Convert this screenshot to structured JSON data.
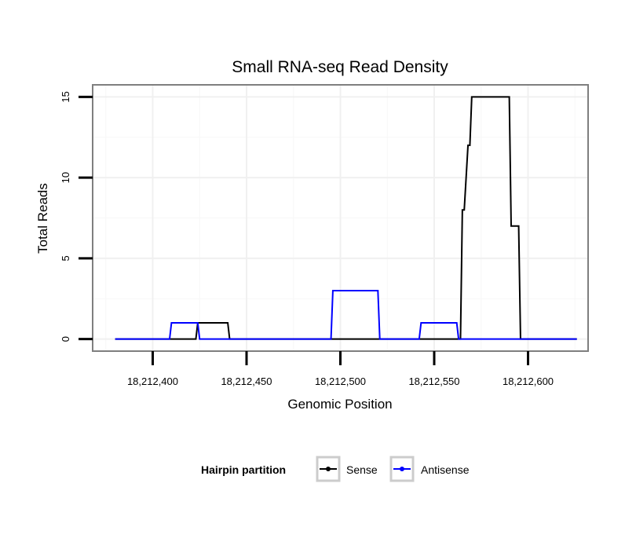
{
  "chart_data": {
    "type": "line",
    "title": "Small RNA-seq Read Density",
    "xlabel": "Genomic Position",
    "ylabel": "Total Reads",
    "xlim": [
      18212368,
      18212632
    ],
    "ylim": [
      -0.75,
      15.75
    ],
    "x_ticks": [
      18212400,
      18212450,
      18212500,
      18212550,
      18212600
    ],
    "x_tick_labels": [
      "18,212,400",
      "18,212,450",
      "18,212,500",
      "18,212,550",
      "18,212,600"
    ],
    "y_ticks": [
      0,
      5,
      10,
      15
    ],
    "y_tick_labels": [
      "0",
      "5",
      "10",
      "15"
    ],
    "grid": true,
    "legend": {
      "title": "Hairpin partition",
      "position": "bottom",
      "entries": [
        "Sense",
        "Antisense"
      ]
    },
    "series": [
      {
        "name": "Sense",
        "color": "#000000",
        "x": [
          18212380,
          18212423,
          18212424,
          18212440,
          18212441,
          18212564,
          18212565,
          18212566,
          18212568,
          18212569,
          18212570,
          18212590,
          18212591,
          18212595,
          18212596,
          18212626
        ],
        "y": [
          0,
          0,
          1,
          1,
          0,
          0,
          8,
          8,
          12,
          12,
          15,
          15,
          7,
          7,
          0,
          0
        ]
      },
      {
        "name": "Antisense",
        "color": "#0000ff",
        "x": [
          18212380,
          18212409,
          18212410,
          18212424,
          18212425,
          18212495,
          18212496,
          18212520,
          18212521,
          18212542,
          18212543,
          18212562,
          18212563,
          18212626
        ],
        "y": [
          0,
          0,
          1,
          1,
          0,
          0,
          3,
          3,
          0,
          0,
          1,
          1,
          0,
          0
        ]
      }
    ]
  }
}
